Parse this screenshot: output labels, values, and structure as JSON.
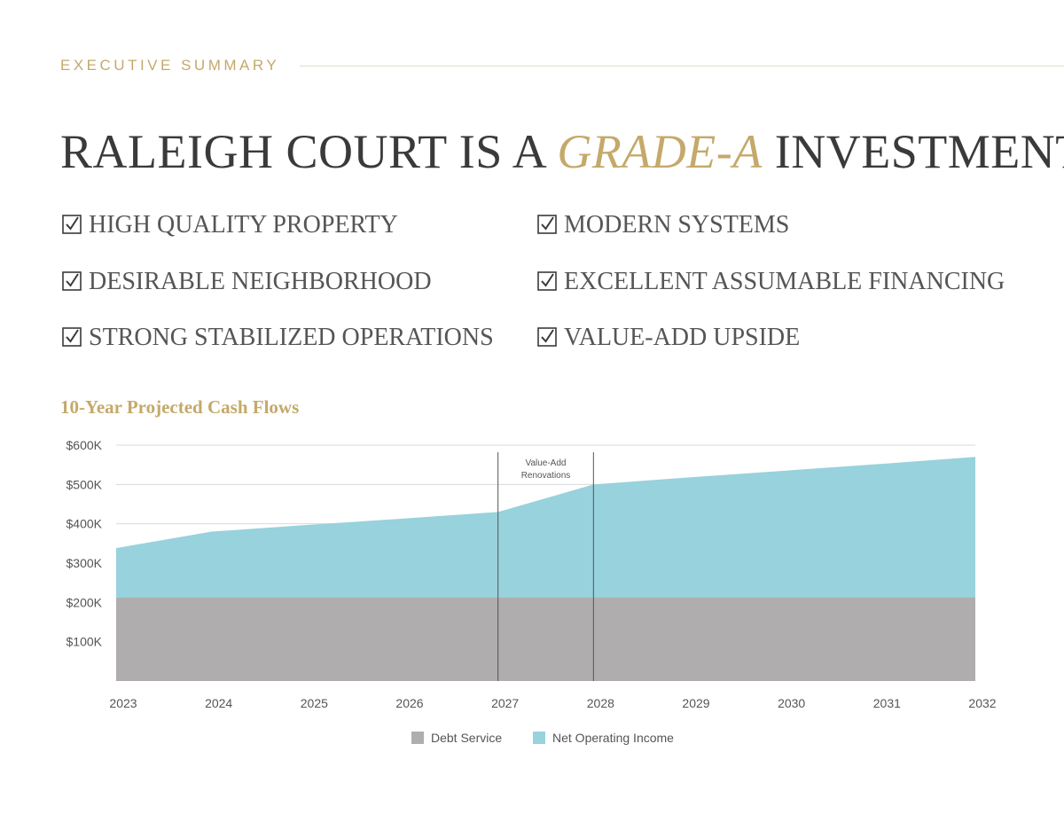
{
  "header": {
    "eyebrow": "EXECUTIVE SUMMARY",
    "title_pre": "RALEIGH COURT IS A ",
    "title_accent": "GRADE-A",
    "title_post": " INVESTMENT"
  },
  "checklist": [
    "HIGH QUALITY PROPERTY",
    "MODERN SYSTEMS",
    "DESIRABLE NEIGHBORHOOD",
    "EXCELLENT ASSUMABLE FINANCING",
    "STRONG STABILIZED OPERATIONS",
    "VALUE-ADD UPSIDE"
  ],
  "colors": {
    "gold": "#c4a96a",
    "debt_service": "#b0adae",
    "noi": "#98d2dc",
    "text": "#555555"
  },
  "chart_data": {
    "type": "area",
    "title": "10-Year Projected Cash Flows",
    "x": [
      "2023",
      "2024",
      "2025",
      "2026",
      "2027",
      "2028",
      "2029",
      "2030",
      "2031",
      "2032"
    ],
    "series": [
      {
        "name": "Debt Service",
        "values": [
          212000,
          212000,
          212000,
          212000,
          212000,
          212000,
          212000,
          212000,
          212000,
          212000
        ]
      },
      {
        "name": "Net Operating Income",
        "values": [
          338000,
          380000,
          397000,
          413000,
          430000,
          500000,
          518000,
          535000,
          552000,
          570000
        ]
      }
    ],
    "ylim": [
      0,
      600000
    ],
    "yticks": [
      100000,
      200000,
      300000,
      400000,
      500000,
      600000
    ],
    "ytick_labels": [
      "$100K",
      "$200K",
      "$300K",
      "$400K",
      "$500K",
      "$600K"
    ],
    "annotation": {
      "text_line1": "Value-Add",
      "text_line2": "Renovations",
      "x_start": "2027",
      "x_end": "2028"
    },
    "legend_placement": "bottom-center",
    "grid": true
  }
}
